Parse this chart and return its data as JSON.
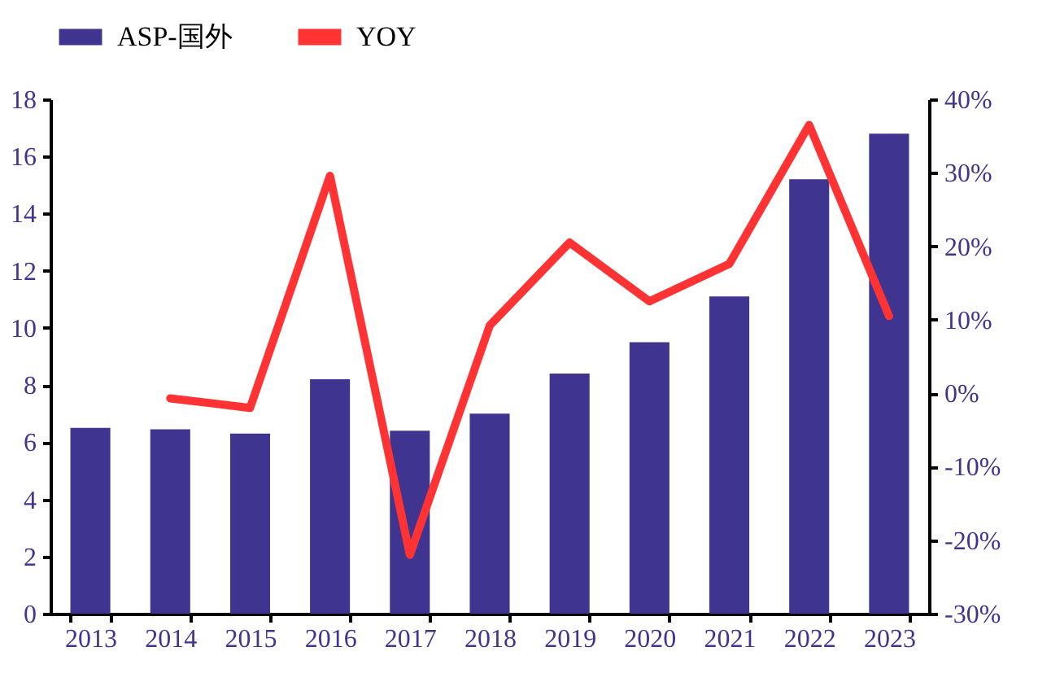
{
  "chart_data": {
    "type": "bar",
    "categories": [
      "2013",
      "2014",
      "2015",
      "2016",
      "2017",
      "2018",
      "2019",
      "2020",
      "2021",
      "2022",
      "2023"
    ],
    "series": [
      {
        "name": "ASP-国外",
        "color": "#3f3590",
        "values": [
          6.5,
          6.45,
          6.3,
          8.2,
          6.4,
          7.0,
          8.4,
          9.5,
          11.1,
          15.2,
          16.8
        ]
      },
      {
        "name": "YOY",
        "type": "line",
        "axis": "y2",
        "color": "#ff3333",
        "values": [
          null,
          -0.7,
          -2,
          29.6,
          -22,
          9.2,
          20.5,
          12.5,
          17.6,
          36.5,
          10.5
        ]
      }
    ],
    "ylim": [
      0,
      18
    ],
    "yticks": [
      0,
      2,
      4,
      6,
      8,
      10,
      12,
      14,
      16,
      18
    ],
    "y2lim": [
      -30,
      40
    ],
    "y2ticks": [
      {
        "value": -30,
        "label": "-30%"
      },
      {
        "value": -20,
        "label": "-20%"
      },
      {
        "value": -10,
        "label": "-10%"
      },
      {
        "value": 0,
        "label": "0%"
      },
      {
        "value": 10,
        "label": "10%"
      },
      {
        "value": 20,
        "label": "20%"
      },
      {
        "value": 30,
        "label": "30%"
      },
      {
        "value": 40,
        "label": "40%"
      }
    ],
    "legend": "top",
    "grid": false
  }
}
